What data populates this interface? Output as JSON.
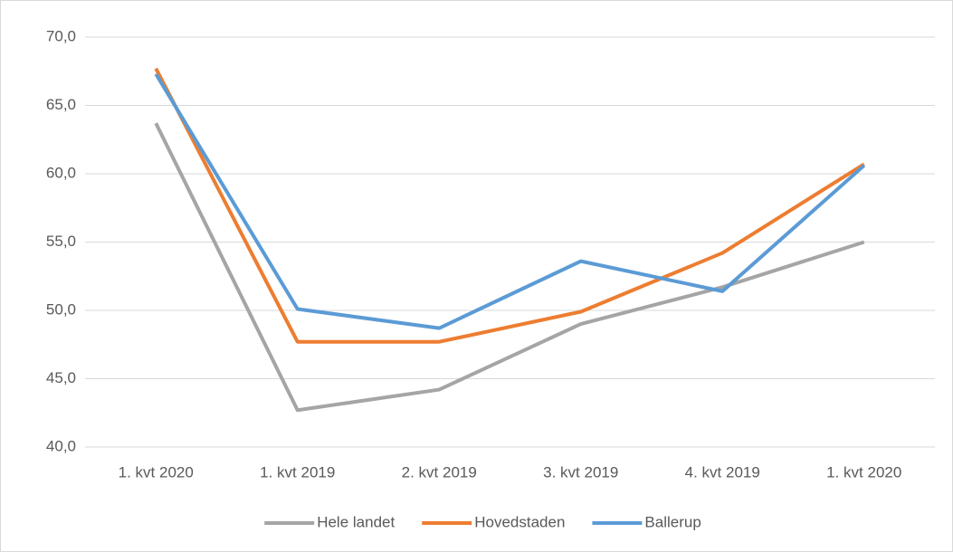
{
  "chart_data": {
    "type": "line",
    "categories": [
      "1. kvt 2020",
      "1. kvt 2019",
      "2. kvt 2019",
      "3. kvt 2019",
      "4. kvt 2019",
      "1. kvt 2020"
    ],
    "series": [
      {
        "name": "Hele landet",
        "color": "#a5a5a5",
        "values": [
          63.7,
          42.7,
          44.2,
          49.0,
          51.7,
          55.0
        ]
      },
      {
        "name": "Hovedstaden",
        "color": "#ed7d31",
        "values": [
          67.7,
          47.7,
          47.7,
          49.9,
          54.2,
          60.7
        ]
      },
      {
        "name": "Ballerup",
        "color": "#5b9bd5",
        "values": [
          67.3,
          50.1,
          48.7,
          53.6,
          51.4,
          60.6
        ]
      }
    ],
    "ylim": [
      40,
      70
    ],
    "yticks": [
      {
        "value": 40,
        "label": "40,0"
      },
      {
        "value": 45,
        "label": "45,0"
      },
      {
        "value": 50,
        "label": "50,0"
      },
      {
        "value": 55,
        "label": "55,0"
      },
      {
        "value": 60,
        "label": "60,0"
      },
      {
        "value": 65,
        "label": "65,0"
      },
      {
        "value": 70,
        "label": "70,0"
      }
    ],
    "grid": true,
    "legend": "bottom"
  }
}
